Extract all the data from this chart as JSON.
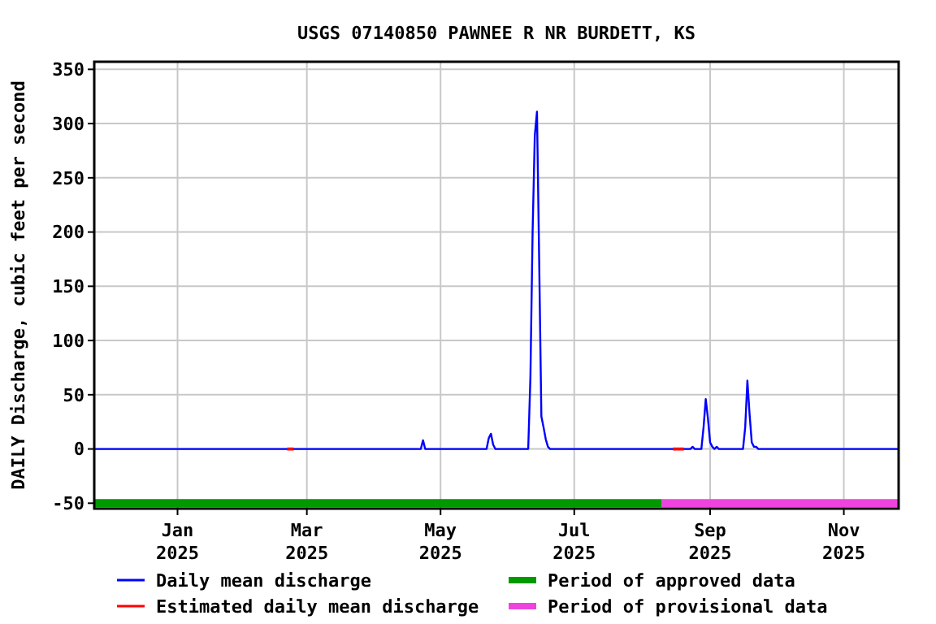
{
  "chart_data": {
    "type": "line",
    "title": "USGS 07140850 PAWNEE R NR BURDETT, KS",
    "ylabel": "DAILY Discharge, cubic feet per second",
    "xlim": [
      "2024-11-24",
      "2025-11-26"
    ],
    "xticks": [
      {
        "value": "2025-01-01",
        "label": "Jan\n2025"
      },
      {
        "value": "2025-03-01",
        "label": "Mar\n2025"
      },
      {
        "value": "2025-05-01",
        "label": "May\n2025"
      },
      {
        "value": "2025-07-01",
        "label": "Jul\n2025"
      },
      {
        "value": "2025-09-01",
        "label": "Sep\n2025"
      },
      {
        "value": "2025-11-01",
        "label": "Nov\n2025"
      }
    ],
    "ylim": [
      -55,
      357
    ],
    "yticks": [
      -50,
      0,
      50,
      100,
      150,
      200,
      250,
      300,
      350
    ],
    "grid": true,
    "legend": "bottom",
    "series": [
      {
        "name": "Daily mean discharge",
        "color": "#0000ff",
        "x": [
          "2024-11-24",
          "2025-04-22",
          "2025-04-23",
          "2025-04-24",
          "2025-05-22",
          "2025-05-23",
          "2025-05-24",
          "2025-05-25",
          "2025-05-26",
          "2025-06-10",
          "2025-06-11",
          "2025-06-12",
          "2025-06-13",
          "2025-06-14",
          "2025-06-15",
          "2025-06-16",
          "2025-06-17",
          "2025-06-18",
          "2025-06-19",
          "2025-06-20",
          "2025-08-23",
          "2025-08-24",
          "2025-08-25",
          "2025-08-28",
          "2025-08-29",
          "2025-08-30",
          "2025-08-31",
          "2025-09-01",
          "2025-09-02",
          "2025-09-03",
          "2025-09-04",
          "2025-09-05",
          "2025-09-16",
          "2025-09-17",
          "2025-09-18",
          "2025-09-19",
          "2025-09-20",
          "2025-09-21",
          "2025-09-22",
          "2025-09-23",
          "2025-11-26"
        ],
        "values": [
          0,
          0,
          8,
          0,
          0,
          10,
          14,
          4,
          0,
          0,
          66,
          200,
          289,
          311,
          174,
          30,
          20,
          9,
          2,
          0,
          0,
          2,
          0,
          0,
          20,
          46,
          28,
          6,
          2,
          0,
          2,
          0,
          0,
          20,
          63,
          32,
          6,
          2,
          2,
          0,
          0
        ]
      },
      {
        "name": "Estimated daily mean discharge",
        "color": "#ff0000",
        "x": [
          "2025-02-20",
          "2025-02-23",
          "2025-02-24",
          "2025-08-15",
          "2025-08-20"
        ],
        "values": [
          0,
          0,
          null,
          0,
          0
        ]
      },
      {
        "name": "Period of approved data",
        "type": "step",
        "color": "#009900",
        "x": [
          "2024-11-24",
          "2025-08-10"
        ],
        "values": [
          -50,
          -50
        ]
      },
      {
        "name": "Period of provisional data",
        "type": "step",
        "color": "#ee44dd",
        "x": [
          "2025-08-10",
          "2025-11-26"
        ],
        "values": [
          -50,
          -50
        ]
      }
    ]
  }
}
